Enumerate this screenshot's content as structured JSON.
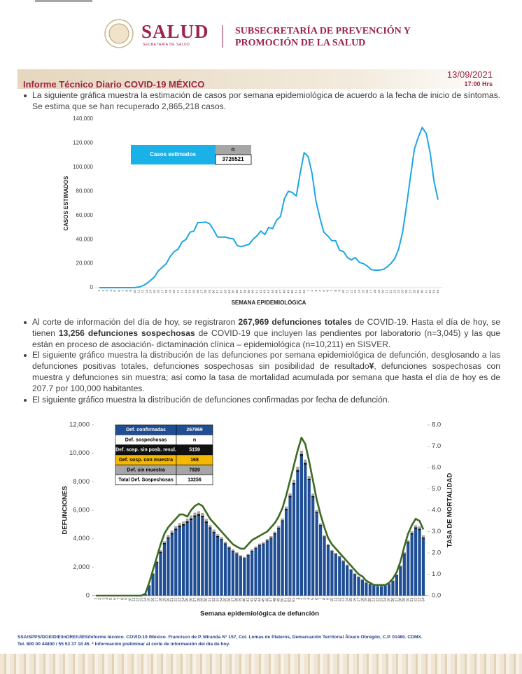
{
  "header": {
    "brand": "SALUD",
    "brand_sub": "SECRETARÍA DE SALUD",
    "office": [
      "SUBSECRETARÍA DE PREVENCIÓN Y",
      "PROMOCIÓN DE LA SALUD"
    ]
  },
  "report": {
    "title": "Informe Técnico Diario COVID-19 MÉXICO",
    "date": "13/09/2021",
    "time": "17:00 Hrs"
  },
  "bullets": [
    [
      {
        "text": "La siguiente gráfica muestra la estimación de casos por semana epidemiológica de acuerdo a la fecha de inicio de síntomas. Se estima que se han recuperado 2,865,218 casos."
      }
    ],
    [
      {
        "text": "Al corte de información del día de hoy, se registraron "
      },
      {
        "text": "267,969 defunciones totales",
        "bold": true
      },
      {
        "text": " de COVID-19. Hasta el día de hoy, se tienen "
      },
      {
        "text": "13,256 defunciones sospechosas",
        "bold": true
      },
      {
        "text": " de COVID-19 que incluyen las pendientes por laboratorio (n=3,045) y las que están en proceso de asociación- dictaminación clínica – epidemiológica (n=10,211) en SISVER."
      }
    ],
    [
      {
        "text": "El siguiente gráfico muestra la distribución de las defunciones por semana epidemiológica de defunción, desglosando a las defunciones positivas totales, defunciones sospechosas sin posibilidad de resultado"
      },
      {
        "text": "¥",
        "bold": true
      },
      {
        "text": ", defunciones sospechosas con muestra y defunciones sin muestra; así como la tasa de mortalidad acumulada por semana que hasta el día de hoy es de 207.7 por 100,000 habitantes."
      }
    ],
    [
      {
        "text": "El siguiente gráfico muestra la distribución de defunciones confirmadas por fecha de defunción."
      }
    ]
  ],
  "chart_data": [
    {
      "type": "line",
      "ylabel": "CASOS ESTIMADOS",
      "xlabel": "SEMANA EPIDEMIOLÓGICA",
      "color": "#1ea6e3",
      "categories": [
        1,
        2,
        3,
        4,
        5,
        6,
        7,
        8,
        9,
        10,
        11,
        12,
        13,
        14,
        15,
        16,
        17,
        18,
        19,
        20,
        21,
        22,
        23,
        24,
        25,
        26,
        27,
        28,
        29,
        30,
        31,
        32,
        33,
        34,
        35,
        36,
        37,
        38,
        39,
        40,
        41,
        42,
        43,
        44,
        45,
        46,
        47,
        48,
        49,
        50,
        51,
        52,
        53,
        1,
        2,
        3,
        4,
        5,
        6,
        7,
        8,
        9,
        10,
        11,
        12,
        13,
        14,
        15,
        16,
        17,
        18,
        19,
        20,
        21,
        22,
        23,
        24,
        25,
        26,
        27,
        28,
        29,
        30,
        31,
        32,
        33,
        34
      ],
      "values": [
        0,
        0,
        0,
        0,
        0,
        0,
        0,
        0,
        0,
        100,
        500,
        1500,
        3500,
        6000,
        9000,
        14000,
        17000,
        20000,
        26000,
        30000,
        32000,
        38000,
        40000,
        46000,
        47000,
        54000,
        54000,
        54500,
        53000,
        48000,
        42000,
        42000,
        42000,
        41000,
        40500,
        35000,
        34000,
        35000,
        36000,
        40000,
        43000,
        47000,
        44000,
        50000,
        49000,
        56000,
        59000,
        74000,
        80000,
        79000,
        76000,
        95000,
        112000,
        109000,
        95000,
        72000,
        58000,
        46000,
        43000,
        39000,
        39000,
        31000,
        30000,
        25000,
        23000,
        25000,
        21000,
        20000,
        18000,
        15000,
        14500,
        14500,
        15000,
        17000,
        20000,
        24000,
        32000,
        46000,
        68000,
        92000,
        115000,
        125000,
        133000,
        128000,
        112000,
        88000,
        73000
      ],
      "ylim": [
        0,
        140000
      ],
      "yticks": [
        0,
        {
          "value": 20000,
          "label": "20,000"
        },
        {
          "value": 40000,
          "label": "40,000"
        },
        {
          "value": 60000,
          "label": "60,000"
        },
        {
          "value": 80000,
          "label": "80,000"
        },
        {
          "value": 100000,
          "label": "100,000"
        },
        {
          "value": 120000,
          "label": "120,000"
        },
        {
          "value": 140000,
          "label": "140,000"
        }
      ],
      "inset_table": {
        "header": "Casos estimados",
        "col": "n",
        "value": 3726521,
        "fill": "#1ab0e8",
        "col_fill": "#a6a6a6"
      }
    },
    {
      "type": "bar",
      "stacked": true,
      "ylabel": "DEFUNCIONES",
      "y2label": "TASA DE MORTALIDAD",
      "xlabel": "Semana epidemiológica de defunción",
      "categories": [
        1,
        2,
        3,
        4,
        5,
        6,
        7,
        8,
        9,
        10,
        11,
        12,
        13,
        14,
        15,
        16,
        17,
        18,
        19,
        20,
        21,
        22,
        23,
        24,
        25,
        26,
        27,
        28,
        29,
        30,
        31,
        32,
        33,
        34,
        35,
        36,
        37,
        38,
        39,
        40,
        41,
        42,
        43,
        44,
        45,
        46,
        47,
        48,
        49,
        50,
        51,
        52,
        53,
        1,
        2,
        3,
        4,
        5,
        6,
        7,
        8,
        9,
        10,
        11,
        12,
        13,
        14,
        15,
        16,
        17,
        18,
        19,
        20,
        21,
        22,
        23,
        24,
        25,
        26,
        27,
        28,
        29,
        30,
        31,
        32,
        33,
        34
      ],
      "series": [
        {
          "color": "#1f4e94",
          "values": [
            0,
            0,
            0,
            0,
            0,
            0,
            0,
            0,
            0,
            0,
            0,
            0,
            0,
            100,
            700,
            1500,
            2300,
            3000,
            3600,
            4000,
            4300,
            4600,
            4800,
            4900,
            5100,
            5300,
            5500,
            5600,
            5500,
            5100,
            4700,
            4400,
            4100,
            3900,
            3600,
            3300,
            3100,
            2900,
            2700,
            2600,
            2800,
            3100,
            3300,
            3500,
            3600,
            3800,
            4000,
            4300,
            4700,
            5200,
            6000,
            6900,
            7800,
            8700,
            9800,
            9200,
            8100,
            6900,
            5800,
            4900,
            4100,
            3500,
            3100,
            2900,
            2700,
            2400,
            2100,
            1800,
            1500,
            1300,
            1100,
            900,
            800,
            700,
            650,
            650,
            700,
            800,
            1000,
            1400,
            2000,
            2900,
            3700,
            4300,
            4700,
            4600,
            4000
          ]
        },
        {
          "color": "#111111",
          "values": [
            0,
            0,
            0,
            0,
            0,
            0,
            0,
            0,
            0,
            0,
            0,
            0,
            0,
            10,
            20,
            40,
            60,
            80,
            90,
            100,
            110,
            110,
            120,
            120,
            120,
            130,
            130,
            130,
            120,
            110,
            100,
            90,
            90,
            80,
            70,
            70,
            60,
            60,
            50,
            50,
            50,
            60,
            60,
            60,
            60,
            70,
            70,
            80,
            80,
            90,
            100,
            110,
            130,
            140,
            150,
            140,
            120,
            100,
            80,
            70,
            60,
            50,
            40,
            40,
            40,
            30,
            30,
            30,
            20,
            20,
            20,
            20,
            20,
            20,
            20,
            20,
            20,
            20,
            30,
            40,
            50,
            60,
            80,
            90,
            100,
            100,
            90
          ]
        },
        {
          "color": "#a6a6a6",
          "values": [
            0,
            0,
            0,
            0,
            0,
            0,
            0,
            0,
            0,
            0,
            0,
            0,
            0,
            10,
            30,
            60,
            90,
            120,
            140,
            160,
            170,
            180,
            180,
            190,
            190,
            200,
            200,
            200,
            190,
            180,
            160,
            150,
            140,
            130,
            120,
            110,
            100,
            90,
            90,
            80,
            90,
            90,
            100,
            100,
            100,
            110,
            110,
            120,
            130,
            140,
            160,
            180,
            200,
            220,
            240,
            220,
            190,
            160,
            130,
            110,
            90,
            80,
            70,
            60,
            60,
            50,
            50,
            40,
            40,
            30,
            30,
            30,
            30,
            30,
            30,
            30,
            30,
            40,
            50,
            60,
            80,
            100,
            120,
            140,
            150,
            160,
            150
          ]
        },
        {
          "type": "line",
          "axis": "y2",
          "color": "#3d6b22",
          "values": [
            0,
            0,
            0,
            0,
            0,
            0,
            0,
            0,
            0,
            0,
            0,
            0,
            0,
            0.1,
            0.6,
            1.2,
            1.8,
            2.4,
            2.9,
            3.2,
            3.4,
            3.6,
            3.8,
            3.8,
            3.7,
            4.0,
            4.2,
            4.3,
            4.2,
            3.9,
            3.6,
            3.4,
            3.2,
            3.0,
            2.8,
            2.6,
            2.4,
            2.3,
            2.2,
            2.2,
            2.4,
            2.6,
            2.7,
            2.8,
            2.9,
            3.0,
            3.2,
            3.4,
            3.7,
            4.1,
            4.7,
            5.4,
            6.1,
            6.8,
            7.4,
            7.1,
            6.3,
            5.4,
            4.5,
            3.8,
            3.2,
            2.7,
            2.4,
            2.2,
            2.0,
            1.8,
            1.6,
            1.4,
            1.2,
            1.0,
            0.9,
            0.7,
            0.6,
            0.5,
            0.5,
            0.5,
            0.5,
            0.6,
            0.8,
            1.1,
            1.6,
            2.3,
            2.9,
            3.3,
            3.6,
            3.5,
            3.1
          ]
        }
      ],
      "ylim": [
        0,
        12000
      ],
      "yticks": [
        0,
        {
          "value": 2000,
          "label": "2,000"
        },
        {
          "value": 4000,
          "label": "4,000"
        },
        {
          "value": 6000,
          "label": "6,000"
        },
        {
          "value": 8000,
          "label": "8,000"
        },
        {
          "value": 10000,
          "label": "10,000"
        },
        {
          "value": 12000,
          "label": "12,000"
        }
      ],
      "y2lim": [
        0,
        8
      ],
      "y2ticks": [
        {
          "value": 0,
          "label": "0.0"
        },
        {
          "value": 1,
          "label": "1.0"
        },
        {
          "value": 2,
          "label": "2.0"
        },
        {
          "value": 3,
          "label": "3.0"
        },
        {
          "value": 4,
          "label": "4.0"
        },
        {
          "value": 5,
          "label": "5.0"
        },
        {
          "value": 6,
          "label": "6.0"
        },
        {
          "value": 7,
          "label": "7.0"
        },
        {
          "value": 8,
          "label": "8.0"
        }
      ],
      "legend_table": [
        {
          "label": "Def. confirmadas",
          "value": 267969,
          "fill": "#1f4e94",
          "text_color": "#ffffff"
        },
        {
          "label": "Def. sospechosas",
          "value": "n",
          "fill": "#ffffff",
          "text_color": "#000000"
        },
        {
          "label": "Def. sosp. sin posb. resul.",
          "value": 5159,
          "fill": "#111111",
          "text_color": "#ffffff"
        },
        {
          "label": "Def. sosp. con  muestra",
          "value": 168,
          "fill": "#f5b800",
          "text_color": "#000000"
        },
        {
          "label": "Def. sin muestra",
          "value": 7929,
          "fill": "#a6a6a6",
          "text_color": "#000000"
        },
        {
          "label": "Total Def. Sospechosas",
          "value": 13256,
          "fill": "#ffffff",
          "text_color": "#000000"
        }
      ]
    }
  ],
  "footer": [
    "SSA/SPPS/DGE/DIE/InDRE/UIES/Informe técnico. COVID-19 /México. Francisco de P. Miranda N° 157, Col. Lomas de Plateros, Demarcación Territorial Álvaro Obregón, C.P. 01480. CDMX.",
    "Tel. 800 00 44800 / 55 53 37 18 45. * Información preliminar al corte de información del día de hoy."
  ]
}
